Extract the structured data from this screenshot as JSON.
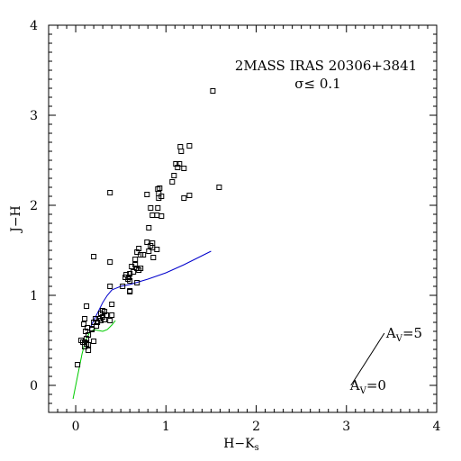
{
  "chart_data": {
    "type": "scatter",
    "title": "2MASS IRAS 20306+3841",
    "subtitle": "σ≤  0.1",
    "xlabel": "H−K",
    "xlabel_sub": "s",
    "ylabel": "J−H",
    "xlim": [
      -0.3,
      4.0
    ],
    "ylim": [
      -0.3,
      4.0
    ],
    "xticks": [
      0,
      1,
      2,
      3,
      4
    ],
    "yticks": [
      0,
      1,
      2,
      3,
      4
    ],
    "grid": false,
    "reddening_vector": {
      "start": [
        3.05,
        0.0
      ],
      "end": [
        3.42,
        0.58
      ],
      "start_label": "A",
      "start_label_sub": "V",
      "start_label_value": "=0",
      "end_label": "A",
      "end_label_sub": "V",
      "end_label_value": "=5"
    },
    "series": [
      {
        "kind": "curve",
        "color": "#00cc00",
        "x": [
          -0.03,
          0.02,
          0.07,
          0.11,
          0.15,
          0.2,
          0.25,
          0.3,
          0.35,
          0.4,
          0.44
        ],
        "y": [
          -0.15,
          0.1,
          0.35,
          0.5,
          0.58,
          0.62,
          0.61,
          0.6,
          0.62,
          0.67,
          0.72
        ]
      },
      {
        "kind": "curve",
        "color": "#0000cc",
        "x": [
          0.15,
          0.2,
          0.25,
          0.3,
          0.35,
          0.4,
          0.5,
          0.6,
          0.8,
          1.0,
          1.2,
          1.5
        ],
        "y": [
          0.62,
          0.72,
          0.82,
          0.92,
          1.0,
          1.06,
          1.1,
          1.12,
          1.18,
          1.25,
          1.34,
          1.49
        ]
      },
      {
        "kind": "points",
        "marker": "square",
        "x": [
          1.52,
          1.59,
          1.26,
          1.16,
          1.17,
          1.11,
          1.15,
          1.2,
          1.13,
          1.26,
          1.07,
          1.09,
          0.92,
          0.95,
          0.91,
          0.93,
          0.92,
          1.2,
          0.38,
          0.79,
          0.83,
          0.91,
          0.85,
          0.81,
          0.9,
          0.95,
          0.79,
          0.85,
          0.83,
          0.81,
          0.85,
          0.9,
          0.86,
          0.7,
          0.68,
          0.72,
          0.75,
          0.66,
          0.62,
          0.68,
          0.7,
          0.64,
          0.72,
          0.66,
          0.6,
          0.68,
          0.59,
          0.56,
          0.55,
          0.58,
          0.6,
          0.38,
          0.6,
          0.52,
          0.38,
          0.4,
          0.6,
          0.2,
          0.12,
          0.4,
          0.3,
          0.28,
          0.32,
          0.3,
          0.38,
          0.32,
          0.26,
          0.28,
          0.24,
          0.2,
          0.23,
          0.34,
          0.18,
          0.1,
          0.09,
          0.13,
          0.11,
          0.22,
          0.18,
          0.06,
          0.14,
          0.12,
          0.1,
          0.14,
          0.2,
          0.12,
          0.14,
          0.08,
          0.1,
          0.02
        ],
        "y": [
          3.27,
          2.2,
          2.66,
          2.65,
          2.6,
          2.46,
          2.46,
          2.41,
          2.42,
          2.11,
          2.26,
          2.33,
          2.08,
          2.1,
          2.18,
          2.19,
          2.13,
          2.08,
          2.14,
          2.12,
          1.97,
          1.97,
          1.89,
          1.75,
          1.89,
          1.88,
          1.59,
          1.58,
          1.55,
          1.49,
          1.53,
          1.51,
          1.42,
          1.52,
          1.48,
          1.45,
          1.45,
          1.4,
          1.32,
          1.3,
          1.28,
          1.26,
          1.3,
          1.34,
          1.24,
          1.14,
          1.2,
          1.23,
          1.2,
          1.18,
          1.16,
          1.37,
          1.05,
          1.1,
          1.1,
          0.9,
          1.04,
          1.43,
          0.88,
          0.78,
          0.83,
          0.8,
          0.82,
          0.76,
          0.72,
          0.73,
          0.74,
          0.72,
          0.7,
          0.7,
          0.66,
          0.78,
          0.63,
          0.74,
          0.68,
          0.64,
          0.6,
          0.74,
          0.62,
          0.5,
          0.56,
          0.52,
          0.48,
          0.45,
          0.49,
          0.46,
          0.39,
          0.48,
          0.43,
          0.23
        ]
      }
    ]
  }
}
